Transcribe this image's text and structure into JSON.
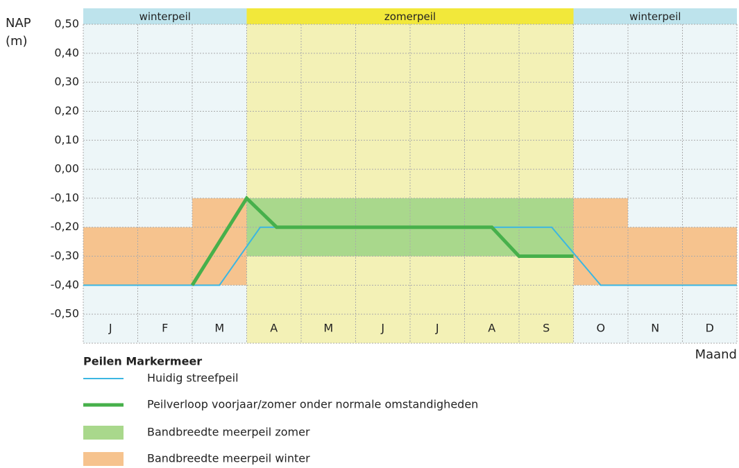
{
  "chart_data": {
    "type": "line",
    "ylabel": [
      "NAP",
      "(m)"
    ],
    "xlabel": "Maand",
    "legend_title": "Peilen Markermeer",
    "xlim": [
      0,
      12
    ],
    "ylim": [
      -0.6,
      0.5
    ],
    "yticks": [
      {
        "value": -0.5,
        "label": "-0,50"
      },
      {
        "value": -0.4,
        "label": "-0,40"
      },
      {
        "value": -0.3,
        "label": "-0,30"
      },
      {
        "value": -0.2,
        "label": "-0,20"
      },
      {
        "value": -0.1,
        "label": "-0,10"
      },
      {
        "value": 0,
        "label": "0,00"
      },
      {
        "value": 0.1,
        "label": "0,10"
      },
      {
        "value": 0.2,
        "label": "0,20"
      },
      {
        "value": 0.3,
        "label": "0,30"
      },
      {
        "value": 0.4,
        "label": "0,40"
      },
      {
        "value": 0.5,
        "label": "0,50"
      }
    ],
    "grid": true,
    "categories": [
      "J",
      "F",
      "M",
      "A",
      "M",
      "J",
      "J",
      "A",
      "S",
      "O",
      "N",
      "D"
    ],
    "seasons": [
      {
        "label": "winterpeil",
        "x": [
          0,
          3
        ],
        "color": "#bde3ec",
        "background": "#edf6f8"
      },
      {
        "label": "zomerpeil",
        "x": [
          3,
          9
        ],
        "color": "#f2e83a",
        "background": "#f3f1b6"
      },
      {
        "label": "winterpeil",
        "x": [
          9,
          12
        ],
        "color": "#bde3ec",
        "background": "#edf6f8"
      }
    ],
    "bands": [
      {
        "name": "Bandbreedte meerpeil zomer",
        "color": "#a9d88c",
        "segments": [
          {
            "x": [
              3,
              9
            ],
            "range": [
              -0.3,
              -0.1
            ]
          }
        ]
      },
      {
        "name": "Bandbreedte meerpeil winter",
        "color": "#f6c38e",
        "segments": [
          {
            "x": [
              0,
              2
            ],
            "range": [
              -0.4,
              -0.2
            ]
          },
          {
            "x": [
              2,
              3
            ],
            "range": [
              -0.4,
              -0.1
            ]
          },
          {
            "x": [
              9,
              10
            ],
            "range": [
              -0.4,
              -0.1
            ]
          },
          {
            "x": [
              10,
              12
            ],
            "range": [
              -0.4,
              -0.2
            ]
          }
        ]
      }
    ],
    "series": [
      {
        "name": "Huidig streefpeil",
        "color": "#3bb6e2",
        "width": 2,
        "x": [
          0,
          2.5,
          3.25,
          8.6,
          9.5,
          12
        ],
        "values": [
          -0.4,
          -0.4,
          -0.2,
          -0.2,
          -0.4,
          -0.4
        ]
      },
      {
        "name": "Peilverloop voorjaar/zomer onder normale omstandigheden",
        "color": "#47b04b",
        "width": 5,
        "x": [
          2,
          3,
          3.55,
          7.5,
          8,
          9
        ],
        "values": [
          -0.4,
          -0.1,
          -0.2,
          -0.2,
          -0.3,
          -0.3
        ]
      }
    ]
  }
}
